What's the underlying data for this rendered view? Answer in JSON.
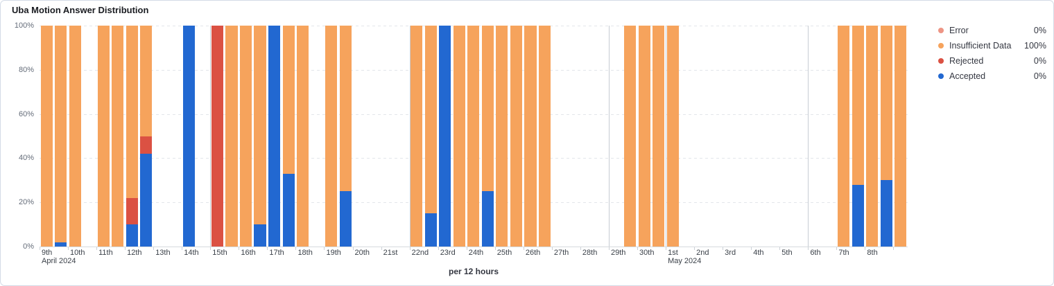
{
  "card": {
    "title": "Uba Motion Answer Distribution"
  },
  "axis": {
    "y_ticks": [
      "100%",
      "80%",
      "60%",
      "40%",
      "20%",
      "0%"
    ],
    "x_title": "per 12 hours",
    "month_labels": [
      {
        "text": "April 2024",
        "day_index": 0
      },
      {
        "text": "May 2024",
        "day_index": 22
      }
    ]
  },
  "legend": {
    "items": [
      {
        "id": "error",
        "label": "Error",
        "value": "0%",
        "color": "#ee9585"
      },
      {
        "id": "insufficient-data",
        "label": "Insufficient Data",
        "value": "100%",
        "color": "#f6a35c"
      },
      {
        "id": "rejected",
        "label": "Rejected",
        "value": "0%",
        "color": "#db5143"
      },
      {
        "id": "accepted",
        "label": "Accepted",
        "value": "0%",
        "color": "#2268d1"
      }
    ]
  },
  "chart_data": {
    "type": "bar",
    "stacked": true,
    "title": "Uba Motion Answer Distribution",
    "xlabel": "per 12 hours",
    "ylabel": "",
    "ylim": [
      0,
      100
    ],
    "y_unit": "percent",
    "x_range": "April 9 2024 to May 9 2024, one bar per 12 hours (2 slots per day, 61 slots)",
    "day_ticks": [
      "9th",
      "10th",
      "11th",
      "12th",
      "13th",
      "14th",
      "15th",
      "16th",
      "17th",
      "18th",
      "19th",
      "20th",
      "21st",
      "22nd",
      "23rd",
      "24th",
      "25th",
      "26th",
      "27th",
      "28th",
      "29th",
      "30th",
      "1st",
      "2nd",
      "3rd",
      "4th",
      "5th",
      "6th",
      "7th",
      "8th",
      ""
    ],
    "week_boundary_day_indices": [
      6,
      13,
      20,
      27
    ],
    "month_boundary_day_indices": [
      22
    ],
    "grid": "dashed horizontal at 20/40/60/80/100",
    "legend_position": "right",
    "series": [
      {
        "name": "Accepted",
        "color": "#2268d1",
        "values": [
          0,
          2,
          0,
          0,
          0,
          0,
          10,
          42,
          0,
          0,
          100,
          0,
          0,
          0,
          0,
          10,
          100,
          33,
          0,
          0,
          0,
          25,
          0,
          0,
          0,
          0,
          0,
          15,
          100,
          0,
          0,
          25,
          0,
          0,
          0,
          0,
          0,
          0,
          0,
          0,
          0,
          0,
          0,
          0,
          0,
          0,
          0,
          0,
          0,
          0,
          0,
          0,
          0,
          0,
          0,
          0,
          0,
          28,
          0,
          30,
          0
        ]
      },
      {
        "name": "Rejected",
        "color": "#db5143",
        "values": [
          0,
          0,
          0,
          0,
          0,
          0,
          12,
          8,
          0,
          0,
          0,
          0,
          100,
          0,
          0,
          0,
          0,
          0,
          0,
          0,
          0,
          0,
          0,
          0,
          0,
          0,
          0,
          0,
          0,
          0,
          0,
          0,
          0,
          0,
          0,
          0,
          0,
          0,
          0,
          0,
          0,
          0,
          0,
          0,
          0,
          0,
          0,
          0,
          0,
          0,
          0,
          0,
          0,
          0,
          0,
          0,
          0,
          0,
          0,
          0,
          0
        ]
      },
      {
        "name": "Error",
        "color": "#ee9585",
        "values": [
          0,
          0,
          0,
          0,
          0,
          0,
          0,
          0,
          0,
          0,
          0,
          0,
          0,
          0,
          0,
          0,
          0,
          0,
          0,
          0,
          0,
          0,
          0,
          0,
          0,
          0,
          0,
          0,
          0,
          0,
          0,
          0,
          0,
          0,
          0,
          0,
          0,
          0,
          0,
          0,
          0,
          0,
          0,
          0,
          0,
          0,
          0,
          0,
          0,
          0,
          0,
          0,
          0,
          0,
          0,
          0,
          0,
          0,
          0,
          0,
          0
        ]
      },
      {
        "name": "Insufficient Data",
        "color": "#f6a35c",
        "values": [
          100,
          98,
          100,
          0,
          100,
          100,
          78,
          50,
          0,
          0,
          0,
          0,
          0,
          100,
          100,
          90,
          0,
          67,
          100,
          0,
          100,
          75,
          0,
          0,
          0,
          0,
          100,
          85,
          0,
          100,
          100,
          75,
          100,
          100,
          100,
          100,
          0,
          0,
          0,
          0,
          0,
          100,
          100,
          100,
          100,
          0,
          0,
          0,
          0,
          0,
          0,
          0,
          0,
          0,
          0,
          0,
          100,
          72,
          100,
          70,
          100
        ]
      }
    ]
  },
  "geometry_note": "plot area left 56, top 36, right 1308, bottom 355"
}
